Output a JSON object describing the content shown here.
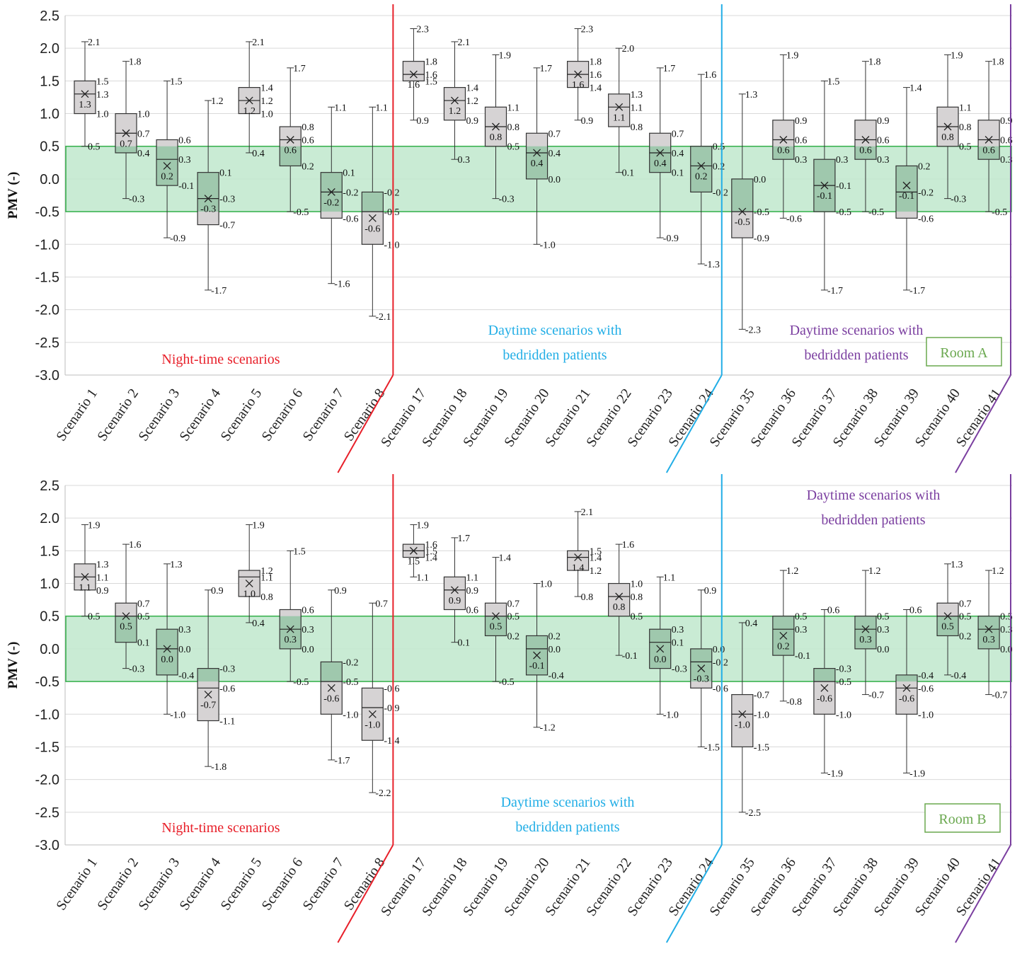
{
  "chart_data": [
    {
      "type": "box",
      "title": "",
      "ylabel": "PMV (-)",
      "ylim": [
        -3.0,
        2.5
      ],
      "yticks": [
        "2.5",
        "2.0",
        "1.5",
        "1.0",
        "0.5",
        "0.0",
        "-0.5",
        "-1.0",
        "-1.5",
        "-2.0",
        "-2.5",
        "-3.0"
      ],
      "comfort_band": [
        -0.5,
        0.5
      ],
      "room_label": "Room A",
      "groups": [
        {
          "label_lines": [
            "Night-time scenarios"
          ],
          "color": "#e8202a"
        },
        {
          "label_lines": [
            "Daytime scenarios with",
            "bedridden patients"
          ],
          "color": "#22aee6"
        },
        {
          "label_lines": [
            "Daytime scenarios with",
            "bedridden patients"
          ],
          "color": "#7b3fa0"
        }
      ],
      "boxes": [
        {
          "label": "Scenario 1",
          "min": 0.5,
          "q1": 1.0,
          "median": 1.3,
          "q3": 1.5,
          "max": 2.1,
          "mean": 1.3,
          "labels": {
            "max": "2.1",
            "q3": "1.5",
            "median": "1.3",
            "q1": "1.0",
            "min": "0.5",
            "mean": "1.3"
          }
        },
        {
          "label": "Scenario 2",
          "min": -0.3,
          "q1": 0.4,
          "median": 0.7,
          "q3": 1.0,
          "max": 1.8,
          "mean": 0.7,
          "labels": {
            "max": "1.8",
            "q3": "1.0",
            "median": "0.7",
            "q1": "0.4",
            "min": "-0.3",
            "mean": "0.7"
          }
        },
        {
          "label": "Scenario 3",
          "min": -0.9,
          "q1": -0.1,
          "median": 0.3,
          "q3": 0.6,
          "max": 1.5,
          "mean": 0.2,
          "labels": {
            "max": "1.5",
            "q3": "0.6",
            "median": "0.3",
            "q1": "-0.1",
            "min": "-0.9",
            "mean": "0.2"
          }
        },
        {
          "label": "Scenario 4",
          "min": -1.7,
          "q1": -0.7,
          "median": -0.3,
          "q3": 0.1,
          "max": 1.2,
          "mean": -0.3,
          "labels": {
            "max": "1.2",
            "q3": "0.1",
            "median": "-0.3",
            "q1": "-0.7",
            "min": "-1.7",
            "mean": "-0.3"
          }
        },
        {
          "label": "Scenario 5",
          "min": 0.4,
          "q1": 1.0,
          "median": 1.2,
          "q3": 1.4,
          "max": 2.1,
          "mean": 1.2,
          "labels": {
            "max": "2.1",
            "q3": "1.4",
            "median": "1.2",
            "q1": "1.0",
            "min": "0.4",
            "mean": "1.2"
          }
        },
        {
          "label": "Scenario 6",
          "min": -0.5,
          "q1": 0.2,
          "median": 0.6,
          "q3": 0.8,
          "max": 1.7,
          "mean": 0.6,
          "labels": {
            "max": "1.7",
            "q3": "0.8",
            "median": "0.6",
            "q1": "0.2",
            "min": "-0.5",
            "mean": "0.6"
          }
        },
        {
          "label": "Scenario 7",
          "min": -1.6,
          "q1": -0.6,
          "median": -0.2,
          "q3": 0.1,
          "max": 1.1,
          "mean": -0.2,
          "labels": {
            "max": "1.1",
            "q3": "0.1",
            "median": "-0.2",
            "q1": "-0.6",
            "min": "-1.6",
            "mean": "-0.2"
          }
        },
        {
          "label": "Scenario 8",
          "min": -2.1,
          "q1": -1.0,
          "median": -0.5,
          "q3": -0.2,
          "max": 1.1,
          "mean": -0.6,
          "labels": {
            "max": "1.1",
            "q3": "-0.2",
            "median": "-0.5",
            "q1": "-1.0",
            "min": "-2.1",
            "mean": "-0.6"
          }
        },
        {
          "label": "Scenario 17",
          "min": 0.9,
          "q1": 1.5,
          "median": 1.6,
          "q3": 1.8,
          "max": 2.3,
          "mean": 1.6,
          "labels": {
            "max": "2.3",
            "q3": "1.8",
            "median": "1.6",
            "q1": "1.5",
            "min": "0.9",
            "mean": "1.6"
          }
        },
        {
          "label": "Scenario 18",
          "min": 0.3,
          "q1": 0.9,
          "median": 1.2,
          "q3": 1.4,
          "max": 2.1,
          "mean": 1.2,
          "labels": {
            "max": "2.1",
            "q3": "1.4",
            "median": "1.2",
            "q1": "0.9",
            "min": "0.3",
            "mean": "1.2"
          }
        },
        {
          "label": "Scenario 19",
          "min": -0.3,
          "q1": 0.5,
          "median": 0.8,
          "q3": 1.1,
          "max": 1.9,
          "mean": 0.8,
          "labels": {
            "max": "1.9",
            "q3": "1.1",
            "median": "0.8",
            "q1": "0.5",
            "min": "-0.3",
            "mean": "0.8"
          }
        },
        {
          "label": "Scenario 20",
          "min": -1.0,
          "q1": 0.0,
          "median": 0.4,
          "q3": 0.7,
          "max": 1.7,
          "mean": 0.4,
          "labels": {
            "max": "1.7",
            "q3": "0.7",
            "median": "0.4",
            "q1": "0.0",
            "min": "-1.0",
            "mean": "0.4"
          }
        },
        {
          "label": "Scenario 21",
          "min": 0.9,
          "q1": 1.4,
          "median": 1.6,
          "q3": 1.8,
          "max": 2.3,
          "mean": 1.6,
          "labels": {
            "max": "2.3",
            "q3": "1.8",
            "median": "1.6",
            "q1": "1.4",
            "min": "0.9",
            "mean": "1.6"
          }
        },
        {
          "label": "Scenario 22",
          "min": 0.1,
          "q1": 0.8,
          "median": 1.1,
          "q3": 1.3,
          "max": 2.0,
          "mean": 1.1,
          "labels": {
            "max": "2.0",
            "q3": "1.3",
            "median": "1.1",
            "q1": "0.8",
            "min": "0.1",
            "mean": "1.1"
          }
        },
        {
          "label": "Scenario 23",
          "min": -0.9,
          "q1": 0.1,
          "median": 0.4,
          "q3": 0.7,
          "max": 1.7,
          "mean": 0.4,
          "labels": {
            "max": "1.7",
            "q3": "0.7",
            "median": "0.4",
            "q1": "0.1",
            "min": "-0.9",
            "mean": "0.4"
          }
        },
        {
          "label": "Scenario 24",
          "min": -1.3,
          "q1": -0.2,
          "median": 0.2,
          "q3": 0.5,
          "max": 1.6,
          "mean": 0.2,
          "labels": {
            "max": "1.6",
            "q3": "0.5",
            "median": "0.2",
            "q1": "-0.2",
            "min": "-1.3",
            "mean": "0.2"
          }
        },
        {
          "label": "Scenario 35",
          "min": -2.3,
          "q1": -0.9,
          "median": -0.5,
          "q3": 0.0,
          "max": 1.3,
          "mean": -0.5,
          "labels": {
            "max": "1.3",
            "q3": "0.0",
            "median": "-0.5",
            "q1": "-0.9",
            "min": "-2.3",
            "mean": "-0.5"
          }
        },
        {
          "label": "Scenario 36",
          "min": -0.6,
          "q1": 0.3,
          "median": 0.6,
          "q3": 0.9,
          "max": 1.9,
          "mean": 0.6,
          "labels": {
            "max": "1.9",
            "q3": "0.9",
            "median": "0.6",
            "q1": "0.3",
            "min": "-0.6",
            "mean": "0.6"
          }
        },
        {
          "label": "Scenario 37",
          "min": -1.7,
          "q1": -0.5,
          "median": -0.1,
          "q3": 0.3,
          "max": 1.5,
          "mean": -0.1,
          "labels": {
            "max": "1.5",
            "q3": "0.3",
            "median": "-0.1",
            "q1": "-0.5",
            "min": "-1.7",
            "mean": "-0.1"
          }
        },
        {
          "label": "Scenario 38",
          "min": -0.5,
          "q1": 0.3,
          "median": 0.6,
          "q3": 0.9,
          "max": 1.8,
          "mean": 0.6,
          "labels": {
            "max": "1.8",
            "q3": "0.9",
            "median": "0.6",
            "q1": "0.3",
            "min": "-0.5",
            "mean": "0.6"
          }
        },
        {
          "label": "Scenario 39",
          "min": -1.7,
          "q1": -0.6,
          "median": -0.2,
          "q3": 0.2,
          "max": 1.4,
          "mean": -0.1,
          "labels": {
            "max": "1.4",
            "q3": "0.2",
            "median": "-0.2",
            "q1": "-0.6",
            "min": "-1.7",
            "mean": "-0.1"
          }
        },
        {
          "label": "Scenario 40",
          "min": -0.3,
          "q1": 0.5,
          "median": 0.8,
          "q3": 1.1,
          "max": 1.9,
          "mean": 0.8,
          "labels": {
            "max": "1.9",
            "q3": "1.1",
            "median": "0.8",
            "q1": "0.5",
            "min": "-0.3",
            "mean": "0.8"
          }
        },
        {
          "label": "Scenario 41",
          "min": -0.5,
          "q1": 0.3,
          "median": 0.6,
          "q3": 0.9,
          "max": 1.8,
          "mean": 0.6,
          "labels": {
            "max": "1.8",
            "q3": "0.9",
            "median": "0.6",
            "q1": "0.3",
            "min": "-0.5",
            "mean": "0.6"
          }
        }
      ]
    },
    {
      "type": "box",
      "title": "",
      "ylabel": "PMV (-)",
      "ylim": [
        -3.0,
        2.5
      ],
      "yticks": [
        "2.5",
        "2.0",
        "1.5",
        "1.0",
        "0.5",
        "0.0",
        "-0.5",
        "-1.0",
        "-1.5",
        "-2.0",
        "-2.5",
        "-3.0"
      ],
      "comfort_band": [
        -0.5,
        0.5
      ],
      "room_label": "Room B",
      "groups": [
        {
          "label_lines": [
            "Night-time scenarios"
          ],
          "color": "#e8202a"
        },
        {
          "label_lines": [
            "Daytime scenarios with",
            "bedridden patients"
          ],
          "color": "#22aee6"
        },
        {
          "label_lines": [
            "Daytime scenarios with",
            "bedridden patients"
          ],
          "color": "#7b3fa0"
        }
      ],
      "boxes": [
        {
          "label": "Scenario 1",
          "min": 0.5,
          "q1": 0.9,
          "median": 1.1,
          "q3": 1.3,
          "max": 1.9,
          "mean": 1.1,
          "labels": {
            "max": "1.9",
            "q3": "1.3",
            "median": "1.1",
            "q1": "0.9",
            "min": "0.5",
            "mean": "1.1"
          }
        },
        {
          "label": "Scenario 2",
          "min": -0.3,
          "q1": 0.1,
          "median": 0.5,
          "q3": 0.7,
          "max": 1.6,
          "mean": 0.5,
          "labels": {
            "max": "1.6",
            "q3": "0.7",
            "median": "0.5",
            "q1": "0.1",
            "min": "-0.3",
            "mean": "0.5"
          }
        },
        {
          "label": "Scenario 3",
          "min": -1.0,
          "q1": -0.4,
          "median": 0.0,
          "q3": 0.3,
          "max": 1.3,
          "mean": 0.0,
          "labels": {
            "max": "1.3",
            "q3": "0.3",
            "median": "0.0",
            "q1": "-0.4",
            "min": "-1.0",
            "mean": "0.0"
          }
        },
        {
          "label": "Scenario 4",
          "min": -1.8,
          "q1": -1.1,
          "median": -0.6,
          "q3": -0.3,
          "max": 0.9,
          "mean": -0.7,
          "labels": {
            "max": "0.9",
            "q3": "-0.3",
            "median": "-0.6",
            "q1": "-1.1",
            "min": "-1.8",
            "mean": "-0.7"
          }
        },
        {
          "label": "Scenario 5",
          "min": 0.4,
          "q1": 0.8,
          "median": 1.1,
          "q3": 1.2,
          "max": 1.9,
          "mean": 1.0,
          "labels": {
            "max": "1.9",
            "q3": "1.2",
            "median": "1.1",
            "q1": "0.8",
            "min": "0.4",
            "mean": "1.0"
          }
        },
        {
          "label": "Scenario 6",
          "min": -0.5,
          "q1": 0.0,
          "median": 0.3,
          "q3": 0.6,
          "max": 1.5,
          "mean": 0.3,
          "labels": {
            "max": "1.5",
            "q3": "0.6",
            "median": "0.3",
            "q1": "0.0",
            "min": "-0.5",
            "mean": "0.3"
          }
        },
        {
          "label": "Scenario 7",
          "min": -1.7,
          "q1": -1.0,
          "median": -0.5,
          "q3": -0.2,
          "max": 0.9,
          "mean": -0.6,
          "labels": {
            "max": "0.9",
            "q3": "-0.2",
            "median": "-0.5",
            "q1": "-1.0",
            "min": "-1.7",
            "mean": "-0.6"
          }
        },
        {
          "label": "Scenario 8",
          "min": -2.2,
          "q1": -1.4,
          "median": -0.9,
          "q3": -0.6,
          "max": 0.7,
          "mean": -1.0,
          "labels": {
            "max": "0.7",
            "q3": "-0.6",
            "median": "-0.9",
            "q1": "-1.4",
            "min": "-2.2",
            "mean": "-1.0"
          }
        },
        {
          "label": "Scenario 17",
          "min": 1.1,
          "q1": 1.4,
          "median": 1.5,
          "q3": 1.6,
          "max": 1.9,
          "mean": 1.5,
          "labels": {
            "max": "1.9",
            "q3": "1.6",
            "median": "1.5",
            "q1": "1.4",
            "min": "1.1",
            "mean": "1.5"
          }
        },
        {
          "label": "Scenario 18",
          "min": 0.1,
          "q1": 0.6,
          "median": 0.9,
          "q3": 1.1,
          "max": 1.7,
          "mean": 0.9,
          "labels": {
            "max": "1.7",
            "q3": "1.1",
            "median": "0.9",
            "q1": "0.6",
            "min": "0.1",
            "mean": "0.9"
          }
        },
        {
          "label": "Scenario 19",
          "min": -0.5,
          "q1": 0.2,
          "median": 0.5,
          "q3": 0.7,
          "max": 1.4,
          "mean": 0.5,
          "labels": {
            "max": "1.4",
            "q3": "0.7",
            "median": "0.5",
            "q1": "0.2",
            "min": "-0.5",
            "mean": "0.5"
          }
        },
        {
          "label": "Scenario 20",
          "min": -1.2,
          "q1": -0.4,
          "median": 0.0,
          "q3": 0.2,
          "max": 1.0,
          "mean": -0.1,
          "labels": {
            "max": "1.0",
            "q3": "0.2",
            "median": "0.0",
            "q1": "-0.4",
            "min": "-1.2",
            "mean": "-0.1"
          }
        },
        {
          "label": "Scenario 21",
          "min": 0.8,
          "q1": 1.2,
          "median": 1.4,
          "q3": 1.5,
          "max": 2.1,
          "mean": 1.4,
          "labels": {
            "max": "2.1",
            "q3": "1.5",
            "median": "1.4",
            "q1": "1.2",
            "min": "0.8",
            "mean": "1.4"
          }
        },
        {
          "label": "Scenario 22",
          "min": -0.1,
          "q1": 0.5,
          "median": 0.8,
          "q3": 1.0,
          "max": 1.6,
          "mean": 0.8,
          "labels": {
            "max": "1.6",
            "q3": "1.0",
            "median": "0.8",
            "q1": "0.5",
            "min": "-0.1",
            "mean": "0.8"
          }
        },
        {
          "label": "Scenario 23",
          "min": -1.0,
          "q1": -0.3,
          "median": 0.1,
          "q3": 0.3,
          "max": 1.1,
          "mean": 0.0,
          "labels": {
            "max": "1.1",
            "q3": "0.3",
            "median": "0.1",
            "q1": "-0.3",
            "min": "-1.0",
            "mean": "0.0"
          }
        },
        {
          "label": "Scenario 24",
          "min": -1.5,
          "q1": -0.6,
          "median": -0.2,
          "q3": 0.0,
          "max": 0.9,
          "mean": -0.3,
          "labels": {
            "max": "0.9",
            "q3": "0.0",
            "median": "-0.2",
            "q1": "-0.6",
            "min": "-1.5",
            "mean": "-0.3"
          }
        },
        {
          "label": "Scenario 35",
          "min": -2.5,
          "q1": -1.5,
          "median": -1.0,
          "q3": -0.7,
          "max": 0.4,
          "mean": -1.0,
          "labels": {
            "max": "0.4",
            "q3": "-0.7",
            "median": "-1.0",
            "q1": "-1.5",
            "min": "-2.5",
            "mean": "-1.0"
          }
        },
        {
          "label": "Scenario 36",
          "min": -0.8,
          "q1": -0.1,
          "median": 0.3,
          "q3": 0.5,
          "max": 1.2,
          "mean": 0.2,
          "labels": {
            "max": "1.2",
            "q3": "0.5",
            "median": "0.3",
            "q1": "-0.1",
            "min": "-0.8",
            "mean": "0.2"
          }
        },
        {
          "label": "Scenario 37",
          "min": -1.9,
          "q1": -1.0,
          "median": -0.5,
          "q3": -0.3,
          "max": 0.6,
          "mean": -0.6,
          "labels": {
            "max": "0.6",
            "q3": "-0.3",
            "median": "-0.5",
            "q1": "-1.0",
            "min": "-1.9",
            "mean": "-0.6"
          }
        },
        {
          "label": "Scenario 38",
          "min": -0.7,
          "q1": 0.0,
          "median": 0.3,
          "q3": 0.5,
          "max": 1.2,
          "mean": 0.3,
          "labels": {
            "max": "1.2",
            "q3": "0.5",
            "median": "0.3",
            "q1": "0.0",
            "min": "-0.7",
            "mean": "0.3"
          }
        },
        {
          "label": "Scenario 39",
          "min": -1.9,
          "q1": -1.0,
          "median": -0.6,
          "q3": -0.4,
          "max": 0.6,
          "mean": -0.6,
          "labels": {
            "max": "0.6",
            "q3": "-0.4",
            "median": "-0.6",
            "q1": "-1.0",
            "min": "-1.9",
            "mean": "-0.6"
          }
        },
        {
          "label": "Scenario 40",
          "min": -0.4,
          "q1": 0.2,
          "median": 0.5,
          "q3": 0.7,
          "max": 1.3,
          "mean": 0.5,
          "labels": {
            "max": "1.3",
            "q3": "0.7",
            "median": "0.5",
            "q1": "0.2",
            "min": "-0.4",
            "mean": "0.5"
          }
        },
        {
          "label": "Scenario 41",
          "min": -0.7,
          "q1": 0.0,
          "median": 0.3,
          "q3": 0.5,
          "max": 1.2,
          "mean": 0.3,
          "labels": {
            "max": "1.2",
            "q3": "0.5",
            "median": "0.3",
            "q1": "0.0",
            "min": "-0.7",
            "mean": "0.3"
          }
        }
      ]
    }
  ],
  "colors": {
    "comfort_fill": "#bfe8cc",
    "comfort_stroke": "#33b04a",
    "box_fill": "#d6d3d4",
    "box_in_band_fill": "#9fc8ad",
    "room_label": "#6aa84f",
    "grid": "#d9d9d9"
  }
}
